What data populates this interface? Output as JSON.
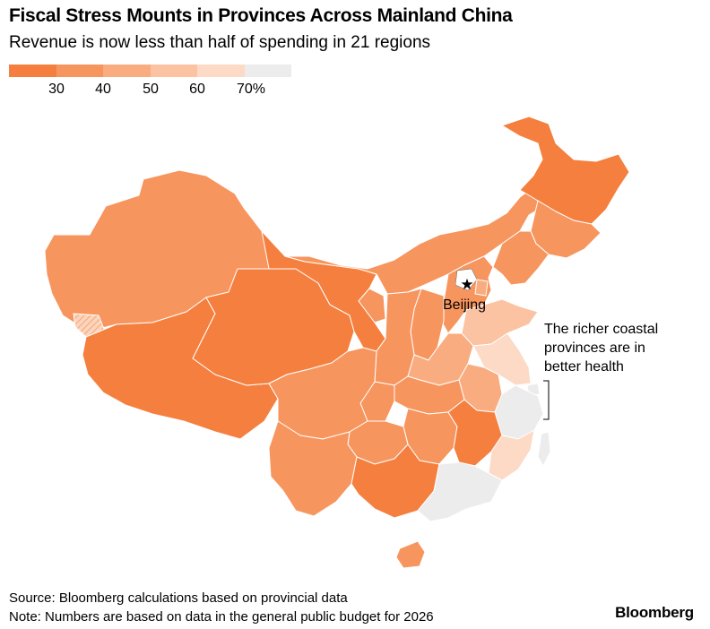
{
  "title": "Fiscal Stress Mounts in Provinces Across Mainland China",
  "subtitle": "Revenue is now less than half of spending in 21 regions",
  "legend": {
    "colors": [
      "#f57f3e",
      "#f7955e",
      "#f9ac80",
      "#fbc3a2",
      "#fcdac6",
      "#ececec"
    ],
    "ticks": [
      "30",
      "40",
      "50",
      "60",
      "70%"
    ]
  },
  "map": {
    "capital_label": "Beijing",
    "annotation": [
      "The richer coastal",
      "provinces are in",
      "better health"
    ]
  },
  "footer": {
    "source": "Source: Bloomberg calculations based on provincial data",
    "note": "Note: Numbers are based on data in the general public budget for 2026"
  },
  "brand": "Bloomberg"
}
